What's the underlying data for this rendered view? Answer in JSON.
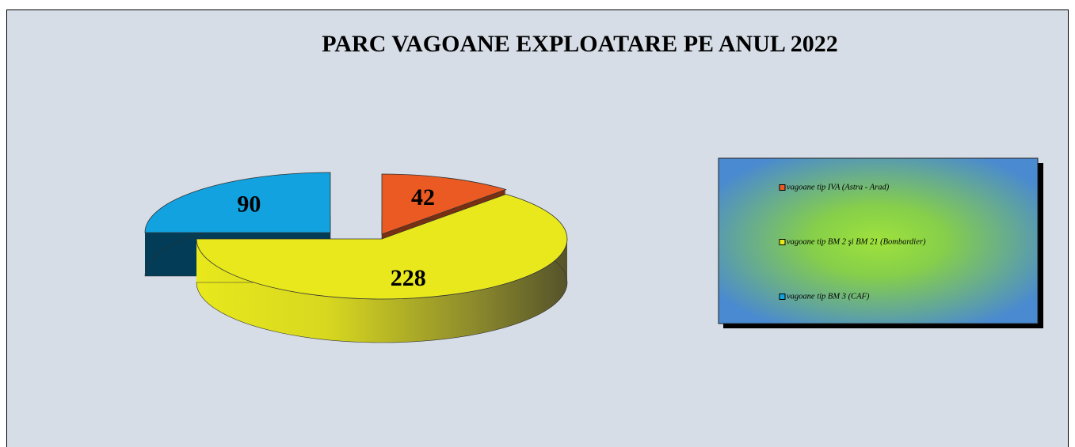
{
  "chart_data": {
    "type": "pie3d",
    "title": "PARC VAGOANE EXPLOATARE PE ANUL 2022",
    "categories": [
      "vagoane tip IVA (Astra - Arad)",
      "vagoane tip BM 2 şi BM 21 (Bombardier)",
      "vagoane tip BM 3 (CAF)"
    ],
    "values": [
      42,
      228,
      90
    ],
    "colors": [
      "#ea5a22",
      "#e8e81c",
      "#12a2e0"
    ],
    "legend": "right"
  }
}
